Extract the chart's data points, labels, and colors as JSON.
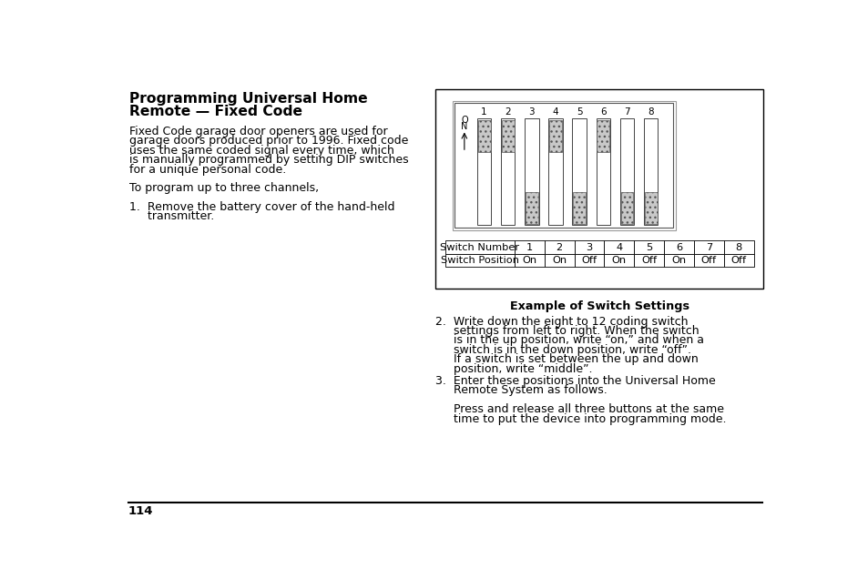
{
  "title_line1": "Programming Universal Home",
  "title_line2": "Remote — Fixed Code",
  "body_left": [
    "Fixed Code garage door openers are used for",
    "garage doors produced prior to 1996. Fixed code",
    "uses the same coded signal every time, which",
    "is manually programmed by setting DIP switches",
    "for a unique personal code.",
    "",
    "To program up to three channels,",
    "",
    "1.  Remove the battery cover of the hand-held",
    "     transmitter."
  ],
  "body_right_para2": [
    "2.  Write down the eight to 12 coding switch",
    "     settings from left to right. When the switch",
    "     is in the up position, write “on,” and when a",
    "     switch is in the down position, write “off”.",
    "     If a switch is set between the up and down",
    "     position, write “middle”."
  ],
  "body_right_para3": [
    "3.  Enter these positions into the Universal Home",
    "     Remote System as follows.",
    "",
    "     Press and release all three buttons at the same",
    "     time to put the device into programming mode."
  ],
  "caption": "Example of Switch Settings",
  "switch_numbers": [
    "1",
    "2",
    "3",
    "4",
    "5",
    "6",
    "7",
    "8"
  ],
  "switch_positions": [
    "On",
    "On",
    "Off",
    "On",
    "Off",
    "On",
    "Off",
    "Off"
  ],
  "switch_states": [
    "on",
    "on",
    "off",
    "on",
    "off",
    "on",
    "off",
    "off"
  ],
  "page_number": "114"
}
